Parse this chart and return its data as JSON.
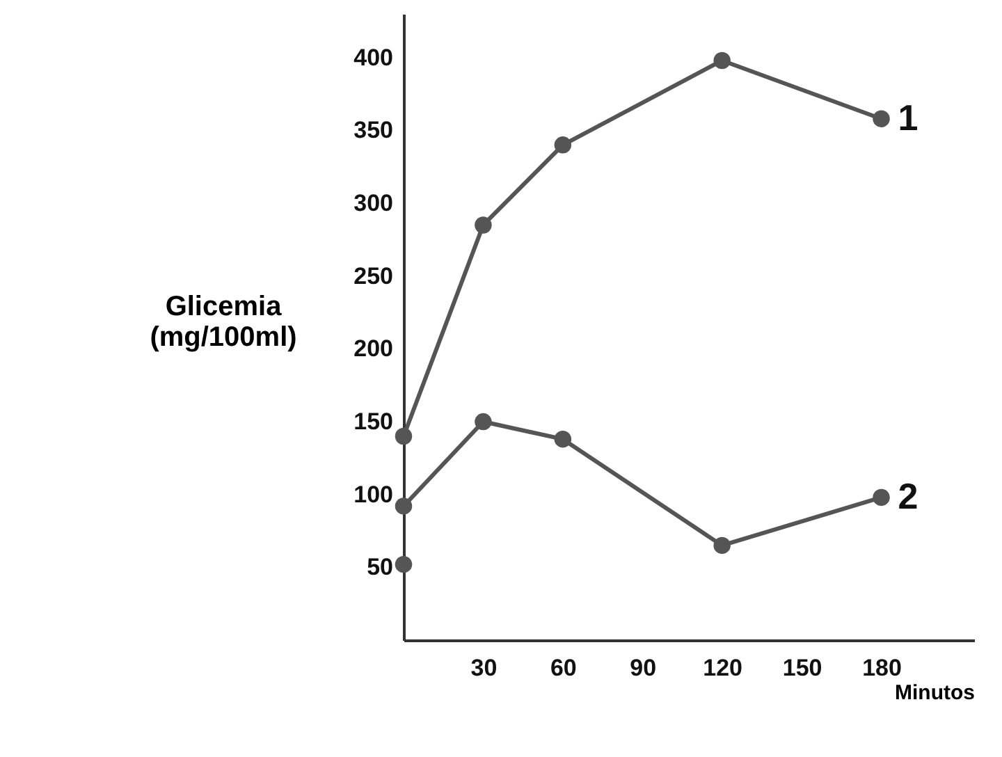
{
  "chart_data": {
    "type": "line",
    "ylabel": "Glicemia\n(mg/100ml)",
    "xlabel": "Minutos",
    "xlim": [
      0,
      215
    ],
    "xticks": [
      30,
      60,
      90,
      120,
      150,
      180
    ],
    "ylim": [
      0,
      430
    ],
    "yticks": [
      50,
      100,
      150,
      200,
      250,
      300,
      350,
      400
    ],
    "marker": "circle",
    "line_style": "solid",
    "series": [
      {
        "name": "1",
        "color": "#555555",
        "x": [
          0,
          30,
          60,
          120,
          180
        ],
        "values": [
          140,
          285,
          340,
          398,
          358
        ]
      },
      {
        "name": "2",
        "color": "#555555",
        "x": [
          0,
          30,
          60,
          120,
          180
        ],
        "values": [
          92,
          150,
          138,
          65,
          98
        ]
      },
      {
        "type": "scatter",
        "color": "#555555",
        "x": [
          0
        ],
        "values": [
          52
        ]
      }
    ]
  }
}
